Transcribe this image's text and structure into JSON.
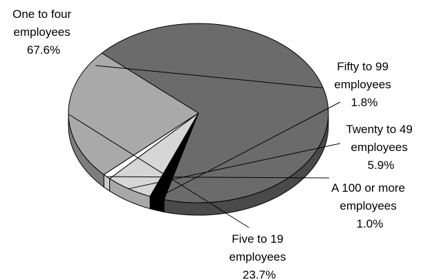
{
  "chart_data": {
    "type": "pie",
    "style": "3d",
    "title": "",
    "slices": [
      {
        "label_lines": [
          "One to four",
          "employees",
          "67.6%"
        ],
        "value": 67.6,
        "color": "#6b6b6b",
        "side_color": "#4a4a4a"
      },
      {
        "label_lines": [
          "Fifty to 99",
          "employees",
          "1.8%"
        ],
        "value": 1.8,
        "color": "#000000",
        "side_color": "#000000"
      },
      {
        "label_lines": [
          "Twenty to 49",
          "employees",
          "5.9%"
        ],
        "value": 5.9,
        "color": "#d6d6d6",
        "side_color": "#a8a8a8"
      },
      {
        "label_lines": [
          "A 100 or more",
          "employees",
          "1.0%"
        ],
        "value": 1.0,
        "color": "#ffffff",
        "side_color": "#cccccc"
      },
      {
        "label_lines": [
          "Five to 19",
          "employees",
          "23.7%"
        ],
        "value": 23.7,
        "color": "#a9a9a9",
        "side_color": "#7d7d7d"
      }
    ]
  }
}
